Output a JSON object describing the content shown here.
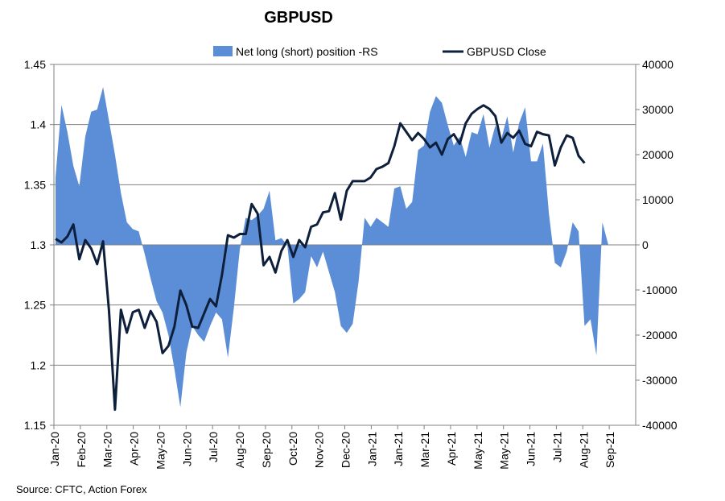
{
  "chart_data": {
    "type": "area+line",
    "title": "GBPUSD",
    "source": "Source: CFTC, Action Forex",
    "legend": {
      "placement": "top",
      "area_label": "Net long (short) position -RS",
      "line_label": "GBPUSD Close"
    },
    "colors": {
      "area": "#5b8ed6",
      "line": "#0d1f3a",
      "grid": "#808080"
    },
    "x_labels": [
      "Jan-20",
      "Feb-20",
      "Mar-20",
      "Apr-20",
      "May-20",
      "Jun-20",
      "Jul-20",
      "Aug-20",
      "Sep-20",
      "Oct-20",
      "Nov-20",
      "Dec-20",
      "Jan-21",
      "Jan-21",
      "Mar-21",
      "Apr-21",
      "May-21",
      "May-21",
      "Jun-21",
      "Jul-21",
      "Aug-21",
      "Sep-21"
    ],
    "y_left": {
      "min": 1.15,
      "max": 1.45,
      "ticks": [
        "1.15",
        "1.2",
        "1.25",
        "1.3",
        "1.35",
        "1.4",
        "1.45"
      ]
    },
    "y_right": {
      "min": -40000,
      "max": 40000,
      "ticks": [
        "-40000",
        "-30000",
        "-20000",
        "-10000",
        "0",
        "10000",
        "20000",
        "30000",
        "40000"
      ]
    },
    "grid": true,
    "series": [
      {
        "name": "Net long (short) position -RS",
        "axis": "right",
        "kind": "area",
        "values": [
          15000,
          31000,
          25000,
          17500,
          13000,
          24000,
          29500,
          30000,
          35000,
          27500,
          20000,
          11500,
          5000,
          3500,
          3000,
          -2000,
          -7500,
          -12500,
          -15000,
          -20000,
          -27500,
          -36000,
          -24000,
          -18000,
          -20000,
          -21500,
          -18000,
          -15000,
          -16500,
          -25000,
          -14000,
          -1000,
          6000,
          5500,
          6500,
          8000,
          12000,
          1000,
          1500,
          0,
          -13000,
          -12000,
          -10500,
          -2500,
          -5000,
          -1500,
          -6000,
          -10500,
          -18000,
          -19500,
          -17500,
          -8000,
          6000,
          4000,
          6000,
          5000,
          4000,
          12500,
          13000,
          8000,
          9500,
          21000,
          22000,
          29500,
          33000,
          31500,
          26500,
          22000,
          24000,
          19500,
          25000,
          24500,
          29000,
          21500,
          26500,
          23500,
          28500,
          20500,
          27000,
          30500,
          18500,
          18500,
          22500,
          7000,
          -4000,
          -5000,
          -1500,
          5000,
          3000,
          -18000,
          -16500,
          -24500,
          5000,
          0
        ]
      },
      {
        "name": "GBPUSD Close",
        "axis": "left",
        "kind": "line",
        "values": [
          1.305,
          1.302,
          1.307,
          1.317,
          1.288,
          1.304,
          1.297,
          1.284,
          1.303,
          1.245,
          1.163,
          1.246,
          1.227,
          1.244,
          1.246,
          1.231,
          1.245,
          1.236,
          1.21,
          1.216,
          1.232,
          1.262,
          1.25,
          1.232,
          1.231,
          1.243,
          1.255,
          1.249,
          1.275,
          1.308,
          1.306,
          1.309,
          1.309,
          1.334,
          1.326,
          1.283,
          1.29,
          1.277,
          1.295,
          1.304,
          1.29,
          1.304,
          1.298,
          1.315,
          1.317,
          1.327,
          1.328,
          1.343,
          1.321,
          1.345,
          1.353,
          1.353,
          1.353,
          1.356,
          1.363,
          1.365,
          1.368,
          1.382,
          1.401,
          1.394,
          1.387,
          1.393,
          1.388,
          1.381,
          1.385,
          1.375,
          1.388,
          1.392,
          1.384,
          1.401,
          1.409,
          1.413,
          1.416,
          1.413,
          1.407,
          1.385,
          1.393,
          1.389,
          1.395,
          1.384,
          1.382,
          1.394,
          1.392,
          1.391,
          1.366,
          1.381,
          1.391,
          1.389,
          1.374,
          1.368
        ]
      }
    ]
  }
}
